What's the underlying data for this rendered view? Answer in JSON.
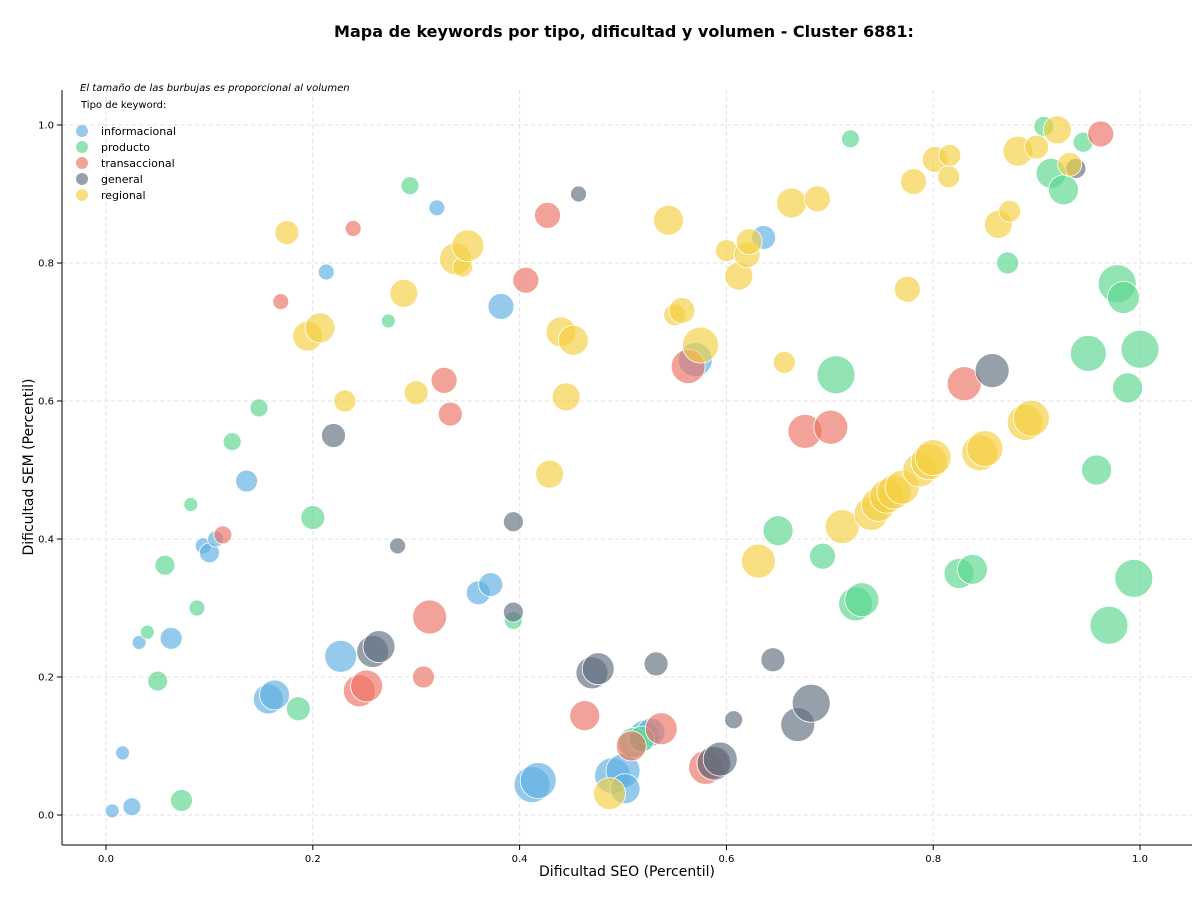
{
  "chart_data": {
    "type": "scatter",
    "title": "Mapa de keywords por tipo, dificultad y volumen - Cluster 6881:",
    "xlabel": "Dificultad SEO (Percentil)",
    "ylabel": "Dificultad SEM (Percentil)",
    "xlim": [
      -0.04,
      1.05
    ],
    "ylim": [
      -0.045,
      1.05
    ],
    "xticks": [
      0.0,
      0.2,
      0.4,
      0.6,
      0.8,
      1.0
    ],
    "yticks": [
      0.0,
      0.2,
      0.4,
      0.6,
      0.8,
      1.0
    ],
    "xtick_labels": [
      "0.0",
      "0.2",
      "0.4",
      "0.6",
      "0.8",
      "1.0"
    ],
    "ytick_labels": [
      "0.0",
      "0.2",
      "0.4",
      "0.6",
      "0.8",
      "1.0"
    ],
    "grid": true,
    "annotation": "El tamaño de las burbujas es proporcional al volumen",
    "legend_title": "Tipo de keyword:",
    "legend_position": "top-left",
    "series": [
      {
        "name": "informacional",
        "color": "#5DADE2",
        "points": [
          {
            "x": 0.006,
            "y": 0.006,
            "s": 7
          },
          {
            "x": 0.025,
            "y": 0.012,
            "s": 9
          },
          {
            "x": 0.016,
            "y": 0.09,
            "s": 7
          },
          {
            "x": 0.032,
            "y": 0.25,
            "s": 7
          },
          {
            "x": 0.063,
            "y": 0.256,
            "s": 11
          },
          {
            "x": 0.094,
            "y": 0.39,
            "s": 8
          },
          {
            "x": 0.1,
            "y": 0.38,
            "s": 10
          },
          {
            "x": 0.106,
            "y": 0.4,
            "s": 8
          },
          {
            "x": 0.136,
            "y": 0.484,
            "s": 11
          },
          {
            "x": 0.157,
            "y": 0.168,
            "s": 15
          },
          {
            "x": 0.163,
            "y": 0.174,
            "s": 15
          },
          {
            "x": 0.213,
            "y": 0.787,
            "s": 8
          },
          {
            "x": 0.227,
            "y": 0.23,
            "s": 16
          },
          {
            "x": 0.32,
            "y": 0.88,
            "s": 8
          },
          {
            "x": 0.36,
            "y": 0.322,
            "s": 12
          },
          {
            "x": 0.372,
            "y": 0.334,
            "s": 12
          },
          {
            "x": 0.382,
            "y": 0.737,
            "s": 13
          },
          {
            "x": 0.412,
            "y": 0.044,
            "s": 18
          },
          {
            "x": 0.418,
            "y": 0.05,
            "s": 18
          },
          {
            "x": 0.49,
            "y": 0.057,
            "s": 18
          },
          {
            "x": 0.5,
            "y": 0.064,
            "s": 17
          },
          {
            "x": 0.502,
            "y": 0.038,
            "s": 15
          },
          {
            "x": 0.52,
            "y": 0.115,
            "s": 15
          },
          {
            "x": 0.527,
            "y": 0.12,
            "s": 14
          },
          {
            "x": 0.57,
            "y": 0.66,
            "s": 17
          },
          {
            "x": 0.636,
            "y": 0.837,
            "s": 12
          }
        ]
      },
      {
        "name": "producto",
        "color": "#58D68D",
        "points": [
          {
            "x": 0.04,
            "y": 0.265,
            "s": 7
          },
          {
            "x": 0.05,
            "y": 0.194,
            "s": 10
          },
          {
            "x": 0.057,
            "y": 0.362,
            "s": 10
          },
          {
            "x": 0.073,
            "y": 0.021,
            "s": 11
          },
          {
            "x": 0.082,
            "y": 0.45,
            "s": 7
          },
          {
            "x": 0.088,
            "y": 0.3,
            "s": 8
          },
          {
            "x": 0.122,
            "y": 0.541,
            "s": 9
          },
          {
            "x": 0.148,
            "y": 0.59,
            "s": 9
          },
          {
            "x": 0.186,
            "y": 0.154,
            "s": 12
          },
          {
            "x": 0.2,
            "y": 0.431,
            "s": 12
          },
          {
            "x": 0.273,
            "y": 0.716,
            "s": 7
          },
          {
            "x": 0.294,
            "y": 0.912,
            "s": 9
          },
          {
            "x": 0.394,
            "y": 0.282,
            "s": 9
          },
          {
            "x": 0.51,
            "y": 0.105,
            "s": 15
          },
          {
            "x": 0.518,
            "y": 0.11,
            "s": 13
          },
          {
            "x": 0.65,
            "y": 0.412,
            "s": 15
          },
          {
            "x": 0.693,
            "y": 0.375,
            "s": 13
          },
          {
            "x": 0.706,
            "y": 0.638,
            "s": 19
          },
          {
            "x": 0.72,
            "y": 0.98,
            "s": 9
          },
          {
            "x": 0.725,
            "y": 0.306,
            "s": 17
          },
          {
            "x": 0.731,
            "y": 0.312,
            "s": 17
          },
          {
            "x": 0.825,
            "y": 0.35,
            "s": 15
          },
          {
            "x": 0.838,
            "y": 0.356,
            "s": 15
          },
          {
            "x": 0.872,
            "y": 0.8,
            "s": 11
          },
          {
            "x": 0.907,
            "y": 0.998,
            "s": 10
          },
          {
            "x": 0.914,
            "y": 0.93,
            "s": 15
          },
          {
            "x": 0.926,
            "y": 0.906,
            "s": 15
          },
          {
            "x": 0.945,
            "y": 0.975,
            "s": 10
          },
          {
            "x": 0.95,
            "y": 0.669,
            "s": 18
          },
          {
            "x": 0.958,
            "y": 0.5,
            "s": 15
          },
          {
            "x": 0.97,
            "y": 0.275,
            "s": 19
          },
          {
            "x": 0.978,
            "y": 0.77,
            "s": 19
          },
          {
            "x": 0.984,
            "y": 0.75,
            "s": 16
          },
          {
            "x": 0.988,
            "y": 0.619,
            "s": 15
          },
          {
            "x": 0.994,
            "y": 0.343,
            "s": 19
          },
          {
            "x": 1.0,
            "y": 0.675,
            "s": 19
          }
        ]
      },
      {
        "name": "transaccional",
        "color": "#EC7063",
        "points": [
          {
            "x": 0.113,
            "y": 0.406,
            "s": 9
          },
          {
            "x": 0.169,
            "y": 0.744,
            "s": 8
          },
          {
            "x": 0.239,
            "y": 0.85,
            "s": 8
          },
          {
            "x": 0.245,
            "y": 0.18,
            "s": 16
          },
          {
            "x": 0.252,
            "y": 0.187,
            "s": 16
          },
          {
            "x": 0.307,
            "y": 0.2,
            "s": 11
          },
          {
            "x": 0.313,
            "y": 0.287,
            "s": 17
          },
          {
            "x": 0.327,
            "y": 0.63,
            "s": 13
          },
          {
            "x": 0.333,
            "y": 0.581,
            "s": 12
          },
          {
            "x": 0.406,
            "y": 0.775,
            "s": 13
          },
          {
            "x": 0.427,
            "y": 0.869,
            "s": 13
          },
          {
            "x": 0.463,
            "y": 0.144,
            "s": 15
          },
          {
            "x": 0.508,
            "y": 0.1,
            "s": 15
          },
          {
            "x": 0.537,
            "y": 0.125,
            "s": 16
          },
          {
            "x": 0.563,
            "y": 0.65,
            "s": 17
          },
          {
            "x": 0.58,
            "y": 0.069,
            "s": 17
          },
          {
            "x": 0.587,
            "y": 0.075,
            "s": 16
          },
          {
            "x": 0.676,
            "y": 0.556,
            "s": 17
          },
          {
            "x": 0.701,
            "y": 0.562,
            "s": 17
          },
          {
            "x": 0.83,
            "y": 0.625,
            "s": 17
          },
          {
            "x": 0.962,
            "y": 0.987,
            "s": 13
          }
        ]
      },
      {
        "name": "general",
        "color": "#5D6D7E",
        "points": [
          {
            "x": 0.22,
            "y": 0.55,
            "s": 12
          },
          {
            "x": 0.258,
            "y": 0.237,
            "s": 16
          },
          {
            "x": 0.264,
            "y": 0.244,
            "s": 16
          },
          {
            "x": 0.282,
            "y": 0.39,
            "s": 8
          },
          {
            "x": 0.394,
            "y": 0.425,
            "s": 10
          },
          {
            "x": 0.394,
            "y": 0.294,
            "s": 10
          },
          {
            "x": 0.457,
            "y": 0.9,
            "s": 8
          },
          {
            "x": 0.47,
            "y": 0.206,
            "s": 16
          },
          {
            "x": 0.476,
            "y": 0.212,
            "s": 16
          },
          {
            "x": 0.532,
            "y": 0.219,
            "s": 12
          },
          {
            "x": 0.588,
            "y": 0.075,
            "s": 17
          },
          {
            "x": 0.594,
            "y": 0.081,
            "s": 17
          },
          {
            "x": 0.607,
            "y": 0.138,
            "s": 9
          },
          {
            "x": 0.645,
            "y": 0.225,
            "s": 12
          },
          {
            "x": 0.669,
            "y": 0.131,
            "s": 17
          },
          {
            "x": 0.682,
            "y": 0.162,
            "s": 19
          },
          {
            "x": 0.857,
            "y": 0.644,
            "s": 17
          },
          {
            "x": 0.938,
            "y": 0.937,
            "s": 10
          }
        ]
      },
      {
        "name": "regional",
        "color": "#F4D03F",
        "points": [
          {
            "x": 0.175,
            "y": 0.844,
            "s": 12
          },
          {
            "x": 0.195,
            "y": 0.694,
            "s": 15
          },
          {
            "x": 0.207,
            "y": 0.706,
            "s": 15
          },
          {
            "x": 0.231,
            "y": 0.6,
            "s": 11
          },
          {
            "x": 0.288,
            "y": 0.756,
            "s": 14
          },
          {
            "x": 0.3,
            "y": 0.612,
            "s": 12
          },
          {
            "x": 0.338,
            "y": 0.806,
            "s": 16
          },
          {
            "x": 0.345,
            "y": 0.794,
            "s": 10
          },
          {
            "x": 0.35,
            "y": 0.825,
            "s": 16
          },
          {
            "x": 0.429,
            "y": 0.494,
            "s": 14
          },
          {
            "x": 0.44,
            "y": 0.7,
            "s": 15
          },
          {
            "x": 0.445,
            "y": 0.606,
            "s": 14
          },
          {
            "x": 0.452,
            "y": 0.688,
            "s": 15
          },
          {
            "x": 0.544,
            "y": 0.862,
            "s": 15
          },
          {
            "x": 0.55,
            "y": 0.725,
            "s": 11
          },
          {
            "x": 0.557,
            "y": 0.731,
            "s": 13
          },
          {
            "x": 0.575,
            "y": 0.681,
            "s": 18
          },
          {
            "x": 0.487,
            "y": 0.031,
            "s": 16
          },
          {
            "x": 0.6,
            "y": 0.818,
            "s": 11
          },
          {
            "x": 0.612,
            "y": 0.781,
            "s": 14
          },
          {
            "x": 0.62,
            "y": 0.812,
            "s": 13
          },
          {
            "x": 0.622,
            "y": 0.831,
            "s": 13
          },
          {
            "x": 0.631,
            "y": 0.368,
            "s": 17
          },
          {
            "x": 0.656,
            "y": 0.656,
            "s": 11
          },
          {
            "x": 0.663,
            "y": 0.887,
            "s": 15
          },
          {
            "x": 0.688,
            "y": 0.893,
            "s": 13
          },
          {
            "x": 0.712,
            "y": 0.418,
            "s": 17
          },
          {
            "x": 0.74,
            "y": 0.437,
            "s": 17
          },
          {
            "x": 0.747,
            "y": 0.45,
            "s": 17
          },
          {
            "x": 0.755,
            "y": 0.462,
            "s": 17
          },
          {
            "x": 0.762,
            "y": 0.468,
            "s": 17
          },
          {
            "x": 0.77,
            "y": 0.475,
            "s": 17
          },
          {
            "x": 0.775,
            "y": 0.762,
            "s": 13
          },
          {
            "x": 0.781,
            "y": 0.918,
            "s": 13
          },
          {
            "x": 0.787,
            "y": 0.5,
            "s": 17
          },
          {
            "x": 0.796,
            "y": 0.512,
            "s": 18
          },
          {
            "x": 0.8,
            "y": 0.518,
            "s": 18
          },
          {
            "x": 0.802,
            "y": 0.95,
            "s": 13
          },
          {
            "x": 0.815,
            "y": 0.925,
            "s": 11
          },
          {
            "x": 0.816,
            "y": 0.956,
            "s": 11
          },
          {
            "x": 0.845,
            "y": 0.525,
            "s": 18
          },
          {
            "x": 0.85,
            "y": 0.531,
            "s": 18
          },
          {
            "x": 0.863,
            "y": 0.856,
            "s": 14
          },
          {
            "x": 0.874,
            "y": 0.875,
            "s": 11
          },
          {
            "x": 0.882,
            "y": 0.962,
            "s": 15
          },
          {
            "x": 0.889,
            "y": 0.569,
            "s": 18
          },
          {
            "x": 0.895,
            "y": 0.575,
            "s": 18
          },
          {
            "x": 0.9,
            "y": 0.968,
            "s": 12
          },
          {
            "x": 0.92,
            "y": 0.993,
            "s": 14
          },
          {
            "x": 0.932,
            "y": 0.943,
            "s": 12
          }
        ]
      }
    ]
  }
}
